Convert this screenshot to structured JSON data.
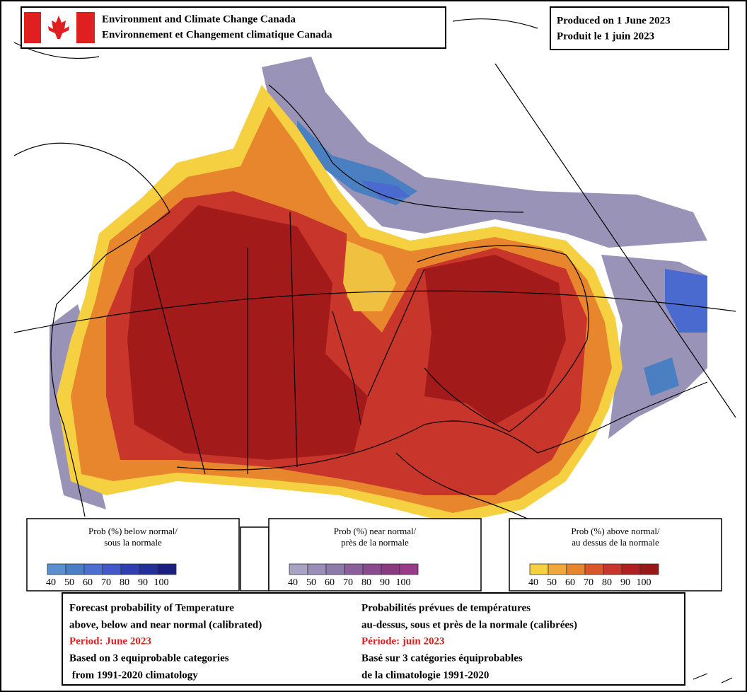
{
  "header": {
    "agency_en": "Environment and Climate Change Canada",
    "agency_fr": "Environnement et Changement climatique Canada"
  },
  "produced": {
    "en": "Produced on 1 June 2023",
    "fr": "Produit le 1 juin 2023"
  },
  "legends": [
    {
      "title": [
        "Prob (%) below normal/",
        "sous la normale"
      ],
      "colors": [
        "#5a8fd0",
        "#4a7fc8",
        "#4a6fd0",
        "#4258c8",
        "#2f3fb0",
        "#24309a",
        "#1a2080"
      ],
      "ticks": [
        "40",
        "50",
        "60",
        "70",
        "80",
        "90",
        "100"
      ]
    },
    {
      "title": [
        "Prob (%) near normal/",
        "près de la normale"
      ],
      "colors": [
        "#a8a2c4",
        "#9a8eb8",
        "#8c7aaa",
        "#8a5f9c",
        "#8a4a8e",
        "#8a3a80",
        "#9a3a8a"
      ],
      "ticks": [
        "40",
        "50",
        "60",
        "70",
        "80",
        "90",
        "100"
      ]
    },
    {
      "title": [
        "Prob (%) above normal/",
        "au dessus de la normale"
      ],
      "colors": [
        "#f5d142",
        "#f0a83a",
        "#e8862e",
        "#d9562a",
        "#c8352a",
        "#b02020",
        "#981818"
      ],
      "ticks": [
        "40",
        "50",
        "60",
        "70",
        "80",
        "90",
        "100"
      ]
    }
  ],
  "footer": {
    "left": [
      "Forecast probability of Temperature",
      "above, below and near normal (calibrated)",
      "Period: June 2023",
      "Based on 3 equiprobable categories",
      " from 1991-2020 climatology"
    ],
    "right": [
      "Probabilités prévues de températures",
      "au-dessus, sous et près de la normale (calibrées)",
      "Période: juin 2023",
      "Basé sur 3 catégories équiprobables",
      "de la climatologie 1991-2020"
    ]
  }
}
